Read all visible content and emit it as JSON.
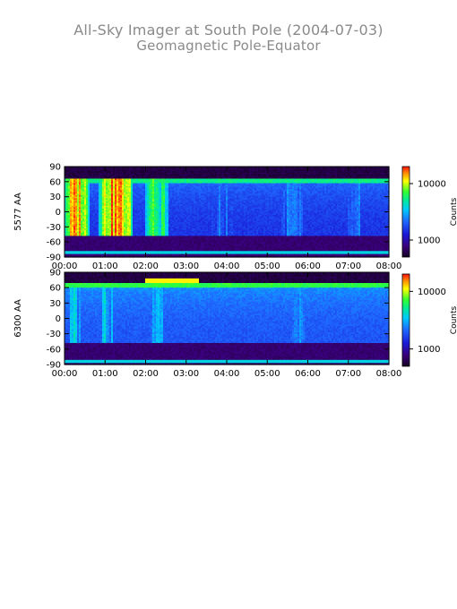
{
  "title": "All-Sky Imager at South Pole (2004-07-03)",
  "subtitle": "Geomagnetic Pole-Equator",
  "chart_data": [
    {
      "type": "heatmap",
      "ylabel": "5577 AA",
      "xlabel": "",
      "x_ticks": [
        "00:00",
        "01:00",
        "02:00",
        "03:00",
        "04:00",
        "05:00",
        "06:00",
        "07:00",
        "08:00"
      ],
      "xlim_hours": [
        0,
        8
      ],
      "y_ticks": [
        "90",
        "60",
        "30",
        "0",
        "-30",
        "-60",
        "-90"
      ],
      "ylim": [
        -90,
        90
      ],
      "colorbar": {
        "label": "Counts",
        "ticks": [
          "10000",
          "1000"
        ],
        "scale": "log",
        "range": [
          500,
          20000
        ]
      },
      "bands": {
        "top_dark_above": 67,
        "bottom_dark_below": -48,
        "baseline_line_at": -82
      },
      "features": [
        {
          "start": 0.0,
          "end": 0.6,
          "level": 0.88
        },
        {
          "start": 0.85,
          "end": 1.7,
          "level": 0.9
        },
        {
          "start": 2.0,
          "end": 2.35,
          "level": 0.72
        },
        {
          "start": 2.35,
          "end": 2.55,
          "level": 0.65
        },
        {
          "start": 3.6,
          "end": 4.2,
          "level": 0.35
        },
        {
          "start": 5.3,
          "end": 5.9,
          "level": 0.38
        },
        {
          "start": 7.0,
          "end": 7.3,
          "level": 0.42
        }
      ],
      "background_level": 0.3
    },
    {
      "type": "heatmap",
      "ylabel": "6300 AA",
      "xlabel": "",
      "x_ticks": [
        "00:00",
        "01:00",
        "02:00",
        "03:00",
        "04:00",
        "05:00",
        "06:00",
        "07:00",
        "08:00"
      ],
      "xlim_hours": [
        0,
        8
      ],
      "y_ticks": [
        "90",
        "60",
        "30",
        "0",
        "-30",
        "-60",
        "-90"
      ],
      "ylim": [
        -90,
        90
      ],
      "colorbar": {
        "label": "Counts",
        "ticks": [
          "10000",
          "1000"
        ],
        "scale": "log",
        "range": [
          500,
          20000
        ]
      },
      "bands": {
        "top_dark_above": 70,
        "bottom_dark_below": -48,
        "baseline_line_at": -85
      },
      "features": [
        {
          "start": 0.1,
          "end": 0.4,
          "level": 0.5
        },
        {
          "start": 0.85,
          "end": 1.2,
          "level": 0.52
        },
        {
          "start": 2.1,
          "end": 2.45,
          "level": 0.5
        },
        {
          "start": 5.5,
          "end": 6.0,
          "level": 0.38
        }
      ],
      "top_band_glow": {
        "start": 2.0,
        "end": 3.3,
        "level": 0.85
      },
      "background_level": 0.36
    }
  ]
}
